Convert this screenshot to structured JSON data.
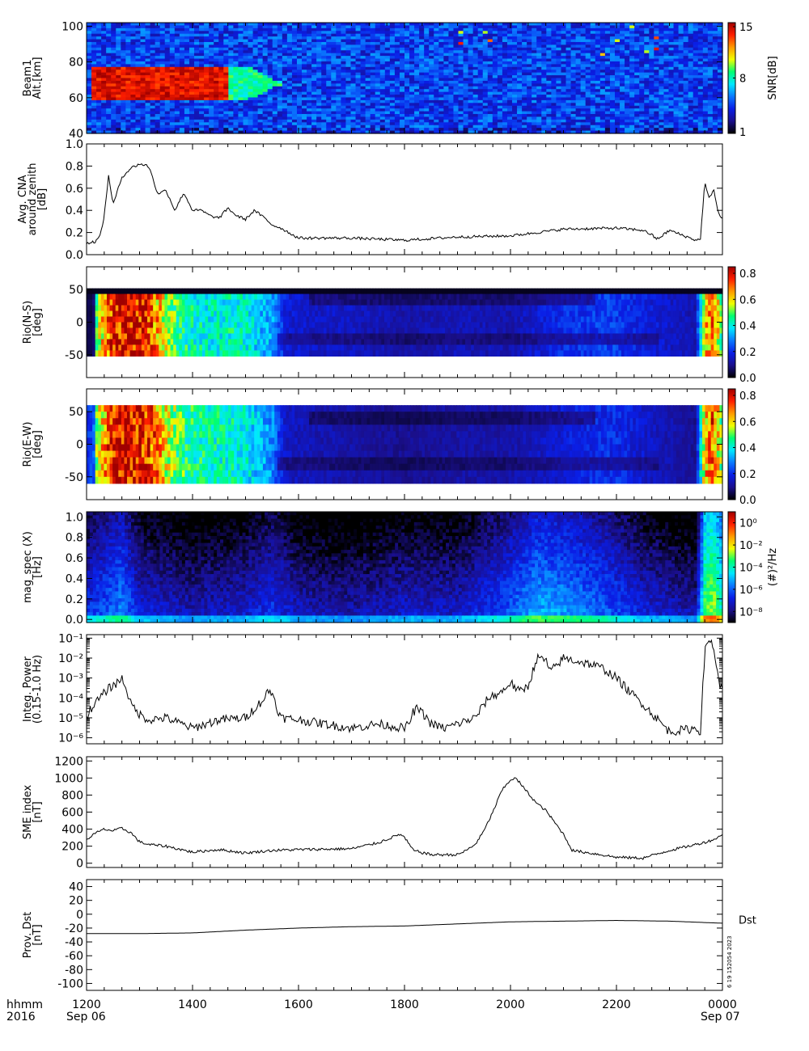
{
  "colors": {
    "background": "#ffffff",
    "axis": "#000000",
    "rainbow_stops": [
      "#000000",
      "#1a0f8c",
      "#0a1ee6",
      "#0a78ff",
      "#00e8ff",
      "#00ff70",
      "#f0ff00",
      "#ff9a00",
      "#ff1e00",
      "#a00000"
    ]
  },
  "footer": {
    "row1_label": "hhmm",
    "row2_label": "2016",
    "x_ticks": [
      "1200",
      "1400",
      "1600",
      "1800",
      "2000",
      "2200",
      "0000"
    ],
    "date_left": "Sep 06",
    "date_right": "Sep 07",
    "stamp": "6 19 152054 2023"
  },
  "chart_data": [
    {
      "id": "beam1",
      "type": "heatmap",
      "ylabel": [
        "Beam1",
        "Alt.[km]"
      ],
      "y_ticks": [
        "40",
        "60",
        "80",
        "100"
      ],
      "ylim": [
        40,
        102
      ],
      "colorbar": {
        "title": "SNR[dB]",
        "ticks": [
          "1",
          "8",
          "15"
        ],
        "range": [
          1,
          15
        ]
      },
      "description_of_signal": "strong echo 60-77 km from 1200 to ~1530 UT, sparse spikes 85-100 km later",
      "patch": {
        "x_start": "1205",
        "x_end": "1540",
        "alt_low": 59,
        "alt_high": 77,
        "peak_snr": 15
      }
    },
    {
      "id": "cna",
      "type": "line",
      "ylabel": [
        "Avg. CNA",
        "around zenith",
        "[dB]"
      ],
      "y_ticks": [
        "0.0",
        "0.2",
        "0.4",
        "0.6",
        "0.8",
        "1.0"
      ],
      "ylim": [
        0,
        1.0
      ],
      "x": [
        "1200",
        "1210",
        "1215",
        "1220",
        "1225",
        "1230",
        "1240",
        "1250",
        "1300",
        "1310",
        "1315",
        "1320",
        "1330",
        "1340",
        "1350",
        "1400",
        "1410",
        "1420",
        "1430",
        "1440",
        "1450",
        "1500",
        "1510",
        "1520",
        "1530",
        "1540",
        "1600",
        "1700",
        "1800",
        "1900",
        "2000",
        "2100",
        "2200",
        "2230",
        "2240",
        "2245",
        "2250",
        "2300",
        "2330",
        "2335",
        "2340",
        "2345",
        "2350",
        "2355",
        "0000"
      ],
      "values": [
        0.1,
        0.12,
        0.16,
        0.35,
        0.72,
        0.45,
        0.7,
        0.78,
        0.82,
        0.8,
        0.7,
        0.55,
        0.58,
        0.4,
        0.56,
        0.4,
        0.4,
        0.35,
        0.33,
        0.42,
        0.35,
        0.32,
        0.4,
        0.34,
        0.27,
        0.24,
        0.15,
        0.15,
        0.13,
        0.16,
        0.17,
        0.23,
        0.24,
        0.22,
        0.18,
        0.14,
        0.16,
        0.22,
        0.13,
        0.14,
        0.65,
        0.5,
        0.6,
        0.38,
        0.32
      ]
    },
    {
      "id": "rio_ns",
      "type": "heatmap",
      "ylabel": [
        "Rio(N-S)",
        "[deg]"
      ],
      "y_ticks": [
        "-50",
        "0",
        "50"
      ],
      "ylim": [
        -85,
        85
      ],
      "data_y_range": [
        -52,
        52
      ],
      "colorbar": {
        "ticks": [
          "0.0",
          "0.2",
          "0.4",
          "0.6",
          "0.8"
        ],
        "range": [
          0,
          0.85
        ]
      },
      "profile_x": [
        "1200",
        "1208",
        "1212",
        "1230",
        "1245",
        "1300",
        "1315",
        "1330",
        "1345",
        "1400",
        "1430",
        "1445",
        "1500",
        "1515",
        "1530",
        "1545",
        "1600",
        "1700",
        "1800",
        "1900",
        "2000",
        "2100",
        "2140",
        "2200",
        "2230",
        "2330",
        "2340",
        "2350",
        "0000"
      ],
      "profile_values": [
        0.05,
        0.05,
        0.55,
        0.75,
        0.82,
        0.8,
        0.7,
        0.55,
        0.45,
        0.42,
        0.4,
        0.42,
        0.4,
        0.35,
        0.32,
        0.18,
        0.16,
        0.15,
        0.12,
        0.14,
        0.13,
        0.2,
        0.22,
        0.22,
        0.18,
        0.13,
        0.6,
        0.7,
        0.45
      ]
    },
    {
      "id": "rio_ew",
      "type": "heatmap",
      "ylabel": [
        "Rio(E-W)",
        "[deg]"
      ],
      "y_ticks": [
        "-50",
        "0",
        "50"
      ],
      "ylim": [
        -85,
        85
      ],
      "data_y_range": [
        -60,
        60
      ],
      "colorbar": {
        "ticks": [
          "0.0",
          "0.2",
          "0.4",
          "0.6",
          "0.8"
        ],
        "range": [
          0,
          0.85
        ]
      },
      "profile_x": [
        "1200",
        "1208",
        "1212",
        "1230",
        "1245",
        "1300",
        "1315",
        "1330",
        "1345",
        "1400",
        "1430",
        "1445",
        "1500",
        "1515",
        "1530",
        "1545",
        "1600",
        "1700",
        "1800",
        "1900",
        "2000",
        "2100",
        "2140",
        "2200",
        "2230",
        "2330",
        "2340",
        "2350",
        "0000"
      ],
      "profile_values": [
        0.2,
        0.25,
        0.55,
        0.78,
        0.82,
        0.8,
        0.72,
        0.58,
        0.48,
        0.44,
        0.42,
        0.42,
        0.4,
        0.34,
        0.3,
        0.15,
        0.14,
        0.12,
        0.1,
        0.12,
        0.12,
        0.17,
        0.2,
        0.2,
        0.16,
        0.1,
        0.62,
        0.72,
        0.48
      ]
    },
    {
      "id": "mag_spec",
      "type": "heatmap",
      "ylabel": [
        "mag_spec (X)",
        "[Hz]"
      ],
      "y_ticks": [
        "0.0",
        "0.2",
        "0.4",
        "0.6",
        "0.8",
        "1.0"
      ],
      "ylim": [
        -0.03,
        1.05
      ],
      "colorbar": {
        "title": "(#)²/Hz",
        "ticks": [
          "10⁰",
          "10⁻²",
          "10⁻⁴",
          "10⁻⁶",
          "10⁻⁸"
        ],
        "log_range": [
          -9,
          1
        ]
      },
      "power_x": [
        "1200",
        "1240",
        "1300",
        "1400",
        "1500",
        "1530",
        "1600",
        "1700",
        "1800",
        "1900",
        "1930",
        "2000",
        "2030",
        "2100",
        "2130",
        "2200",
        "2230",
        "2330",
        "2340",
        "2350",
        "0000"
      ],
      "power_log": [
        -6.5,
        -5.4,
        -6.8,
        -7.3,
        -7.0,
        -6.4,
        -7.2,
        -7.4,
        -7.0,
        -7.1,
        -6.5,
        -5.9,
        -5.0,
        -5.2,
        -5.6,
        -6.1,
        -6.8,
        -7.4,
        -3.0,
        -2.5,
        -4.0
      ]
    },
    {
      "id": "integ_power",
      "type": "line",
      "ylabel": [
        "Integ. Power",
        "(0.15-1.0 Hz)"
      ],
      "y_ticks": [
        "10⁻⁶",
        "10⁻⁵",
        "10⁻⁴",
        "10⁻³",
        "10⁻²",
        "10⁻¹"
      ],
      "y_scale": "log",
      "ylim": [
        5e-07,
        0.15
      ],
      "x": [
        "1200",
        "1205",
        "1215",
        "1225",
        "1235",
        "1240",
        "1245",
        "1250",
        "1300",
        "1310",
        "1330",
        "1400",
        "1430",
        "1500",
        "1510",
        "1520",
        "1525",
        "1530",
        "1535",
        "1540",
        "1600",
        "1700",
        "1730",
        "1800",
        "1805",
        "1810",
        "1815",
        "1825",
        "1830",
        "1845",
        "1900",
        "1920",
        "1935",
        "1950",
        "2000",
        "2010",
        "2020",
        "2030",
        "2040",
        "2045",
        "2100",
        "2130",
        "2145",
        "2200",
        "2215",
        "2230",
        "2245",
        "2300",
        "2330",
        "2335",
        "2340",
        "2345",
        "2350",
        "2355",
        "0000"
      ],
      "values": [
        1e-05,
        3e-05,
        0.0001,
        0.0003,
        0.0006,
        0.001,
        0.0003,
        5e-05,
        1.5e-05,
        8e-06,
        1e-05,
        3e-06,
        8e-06,
        1e-05,
        3e-05,
        8e-05,
        0.0002,
        0.0002,
        4e-05,
        1e-05,
        8e-06,
        3e-06,
        5e-06,
        3e-06,
        5e-06,
        2e-05,
        3e-05,
        1e-05,
        5e-06,
        3e-06,
        5e-06,
        1e-05,
        0.0001,
        0.0002,
        0.0006,
        0.0002,
        0.0004,
        0.01,
        0.008,
        0.002,
        0.01,
        0.005,
        0.003,
        0.001,
        0.0002,
        5e-05,
        1e-05,
        2e-06,
        3e-06,
        2e-06,
        0.02,
        0.09,
        0.04,
        0.001,
        0.0002
      ]
    },
    {
      "id": "sme",
      "type": "line",
      "ylabel": [
        "SME index",
        "[nT]"
      ],
      "y_ticks": [
        "0",
        "200",
        "400",
        "600",
        "800",
        "1000",
        "1200"
      ],
      "ylim": [
        -50,
        1250
      ],
      "x": [
        "1200",
        "1210",
        "1220",
        "1230",
        "1240",
        "1250",
        "1300",
        "1310",
        "1330",
        "1400",
        "1430",
        "1500",
        "1530",
        "1600",
        "1700",
        "1730",
        "1745",
        "1755",
        "1800",
        "1810",
        "1830",
        "1900",
        "1910",
        "1920",
        "1930",
        "1940",
        "1950",
        "2000",
        "2005",
        "2010",
        "2020",
        "2030",
        "2040",
        "2100",
        "2110",
        "2130",
        "2200",
        "2230",
        "2300",
        "2330",
        "2345",
        "2355",
        "0000"
      ],
      "values": [
        280,
        350,
        400,
        380,
        410,
        360,
        250,
        220,
        200,
        130,
        160,
        120,
        150,
        160,
        170,
        240,
        300,
        340,
        300,
        150,
        100,
        100,
        150,
        220,
        380,
        600,
        850,
        980,
        1000,
        950,
        820,
        700,
        620,
        340,
        150,
        120,
        70,
        60,
        150,
        220,
        260,
        300,
        350
      ]
    },
    {
      "id": "dst",
      "type": "line",
      "ylabel": [
        "Prov. Dst",
        "[nT]"
      ],
      "y_ticks": [
        "-100",
        "-80",
        "-60",
        "-40",
        "-20",
        "0",
        "20",
        "40"
      ],
      "ylim": [
        -110,
        50
      ],
      "series_label": "Dst",
      "x": [
        "1200",
        "1300",
        "1400",
        "1500",
        "1600",
        "1700",
        "1800",
        "1900",
        "2000",
        "2100",
        "2200",
        "2300",
        "0000"
      ],
      "values": [
        -28,
        -28,
        -27,
        -23,
        -20,
        -18,
        -17,
        -14,
        -11,
        -10,
        -9,
        -10,
        -13
      ]
    }
  ]
}
